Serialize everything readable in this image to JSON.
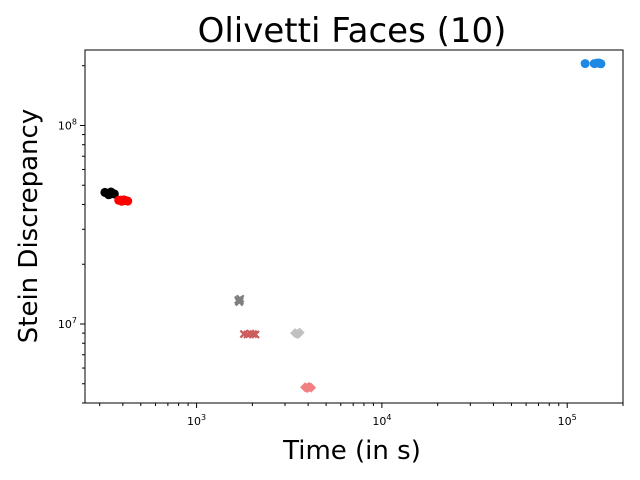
{
  "chart_data": {
    "type": "scatter",
    "title": "Olivetti Faces (10)",
    "xlabel": "Time (in s)",
    "ylabel": "Stein Discrepancy",
    "xscale": "log",
    "yscale": "log",
    "xlim": [
      250,
      200000
    ],
    "ylim": [
      4000000,
      240000000
    ],
    "grid": false,
    "x_ticks": [
      {
        "base": "10",
        "exp": "3",
        "value": 1000
      },
      {
        "base": "10",
        "exp": "4",
        "value": 10000
      },
      {
        "base": "10",
        "exp": "5",
        "value": 100000
      }
    ],
    "y_ticks": [
      {
        "base": "10",
        "exp": "7",
        "value": 10000000
      },
      {
        "base": "10",
        "exp": "8",
        "value": 100000000
      }
    ],
    "series": [
      {
        "color": "#000000",
        "marker": "circle",
        "points": [
          [
            320,
            46000000
          ],
          [
            330,
            45500000
          ],
          [
            340,
            45000000
          ],
          [
            350,
            45800000
          ],
          [
            360,
            45200000
          ],
          [
            335,
            44800000
          ],
          [
            345,
            46200000
          ]
        ]
      },
      {
        "color": "#ff0000",
        "marker": "circle",
        "points": [
          [
            380,
            42000000
          ],
          [
            395,
            41500000
          ],
          [
            405,
            42200000
          ],
          [
            415,
            41800000
          ],
          [
            425,
            41600000
          ],
          [
            390,
            42100000
          ]
        ]
      },
      {
        "color": "#808080",
        "marker": "x",
        "points": [
          [
            1680,
            13200000
          ],
          [
            1700,
            12900000
          ],
          [
            1720,
            13400000
          ],
          [
            1690,
            13000000
          ],
          [
            1710,
            13100000
          ]
        ]
      },
      {
        "color": "#cd5c5c",
        "marker": "x",
        "points": [
          [
            1800,
            8900000
          ],
          [
            1880,
            8850000
          ],
          [
            1950,
            8950000
          ],
          [
            2020,
            8900000
          ],
          [
            2080,
            8850000
          ]
        ]
      },
      {
        "color": "#c0c0c0",
        "marker": "diamond",
        "points": [
          [
            3400,
            9000000
          ],
          [
            3500,
            8900000
          ],
          [
            3600,
            9050000
          ],
          [
            3550,
            8950000
          ]
        ]
      },
      {
        "color": "#f08080",
        "marker": "diamond",
        "points": [
          [
            3850,
            4800000
          ],
          [
            3950,
            4750000
          ],
          [
            4050,
            4820000
          ],
          [
            4150,
            4780000
          ],
          [
            4000,
            4790000
          ]
        ]
      },
      {
        "color": "#1e88e5",
        "marker": "circle",
        "points": [
          [
            125000,
            205000000
          ],
          [
            140000,
            205000000
          ],
          [
            145000,
            206000000
          ],
          [
            150000,
            205500000
          ],
          [
            152000,
            204500000
          ],
          [
            148000,
            206500000
          ]
        ]
      }
    ]
  }
}
